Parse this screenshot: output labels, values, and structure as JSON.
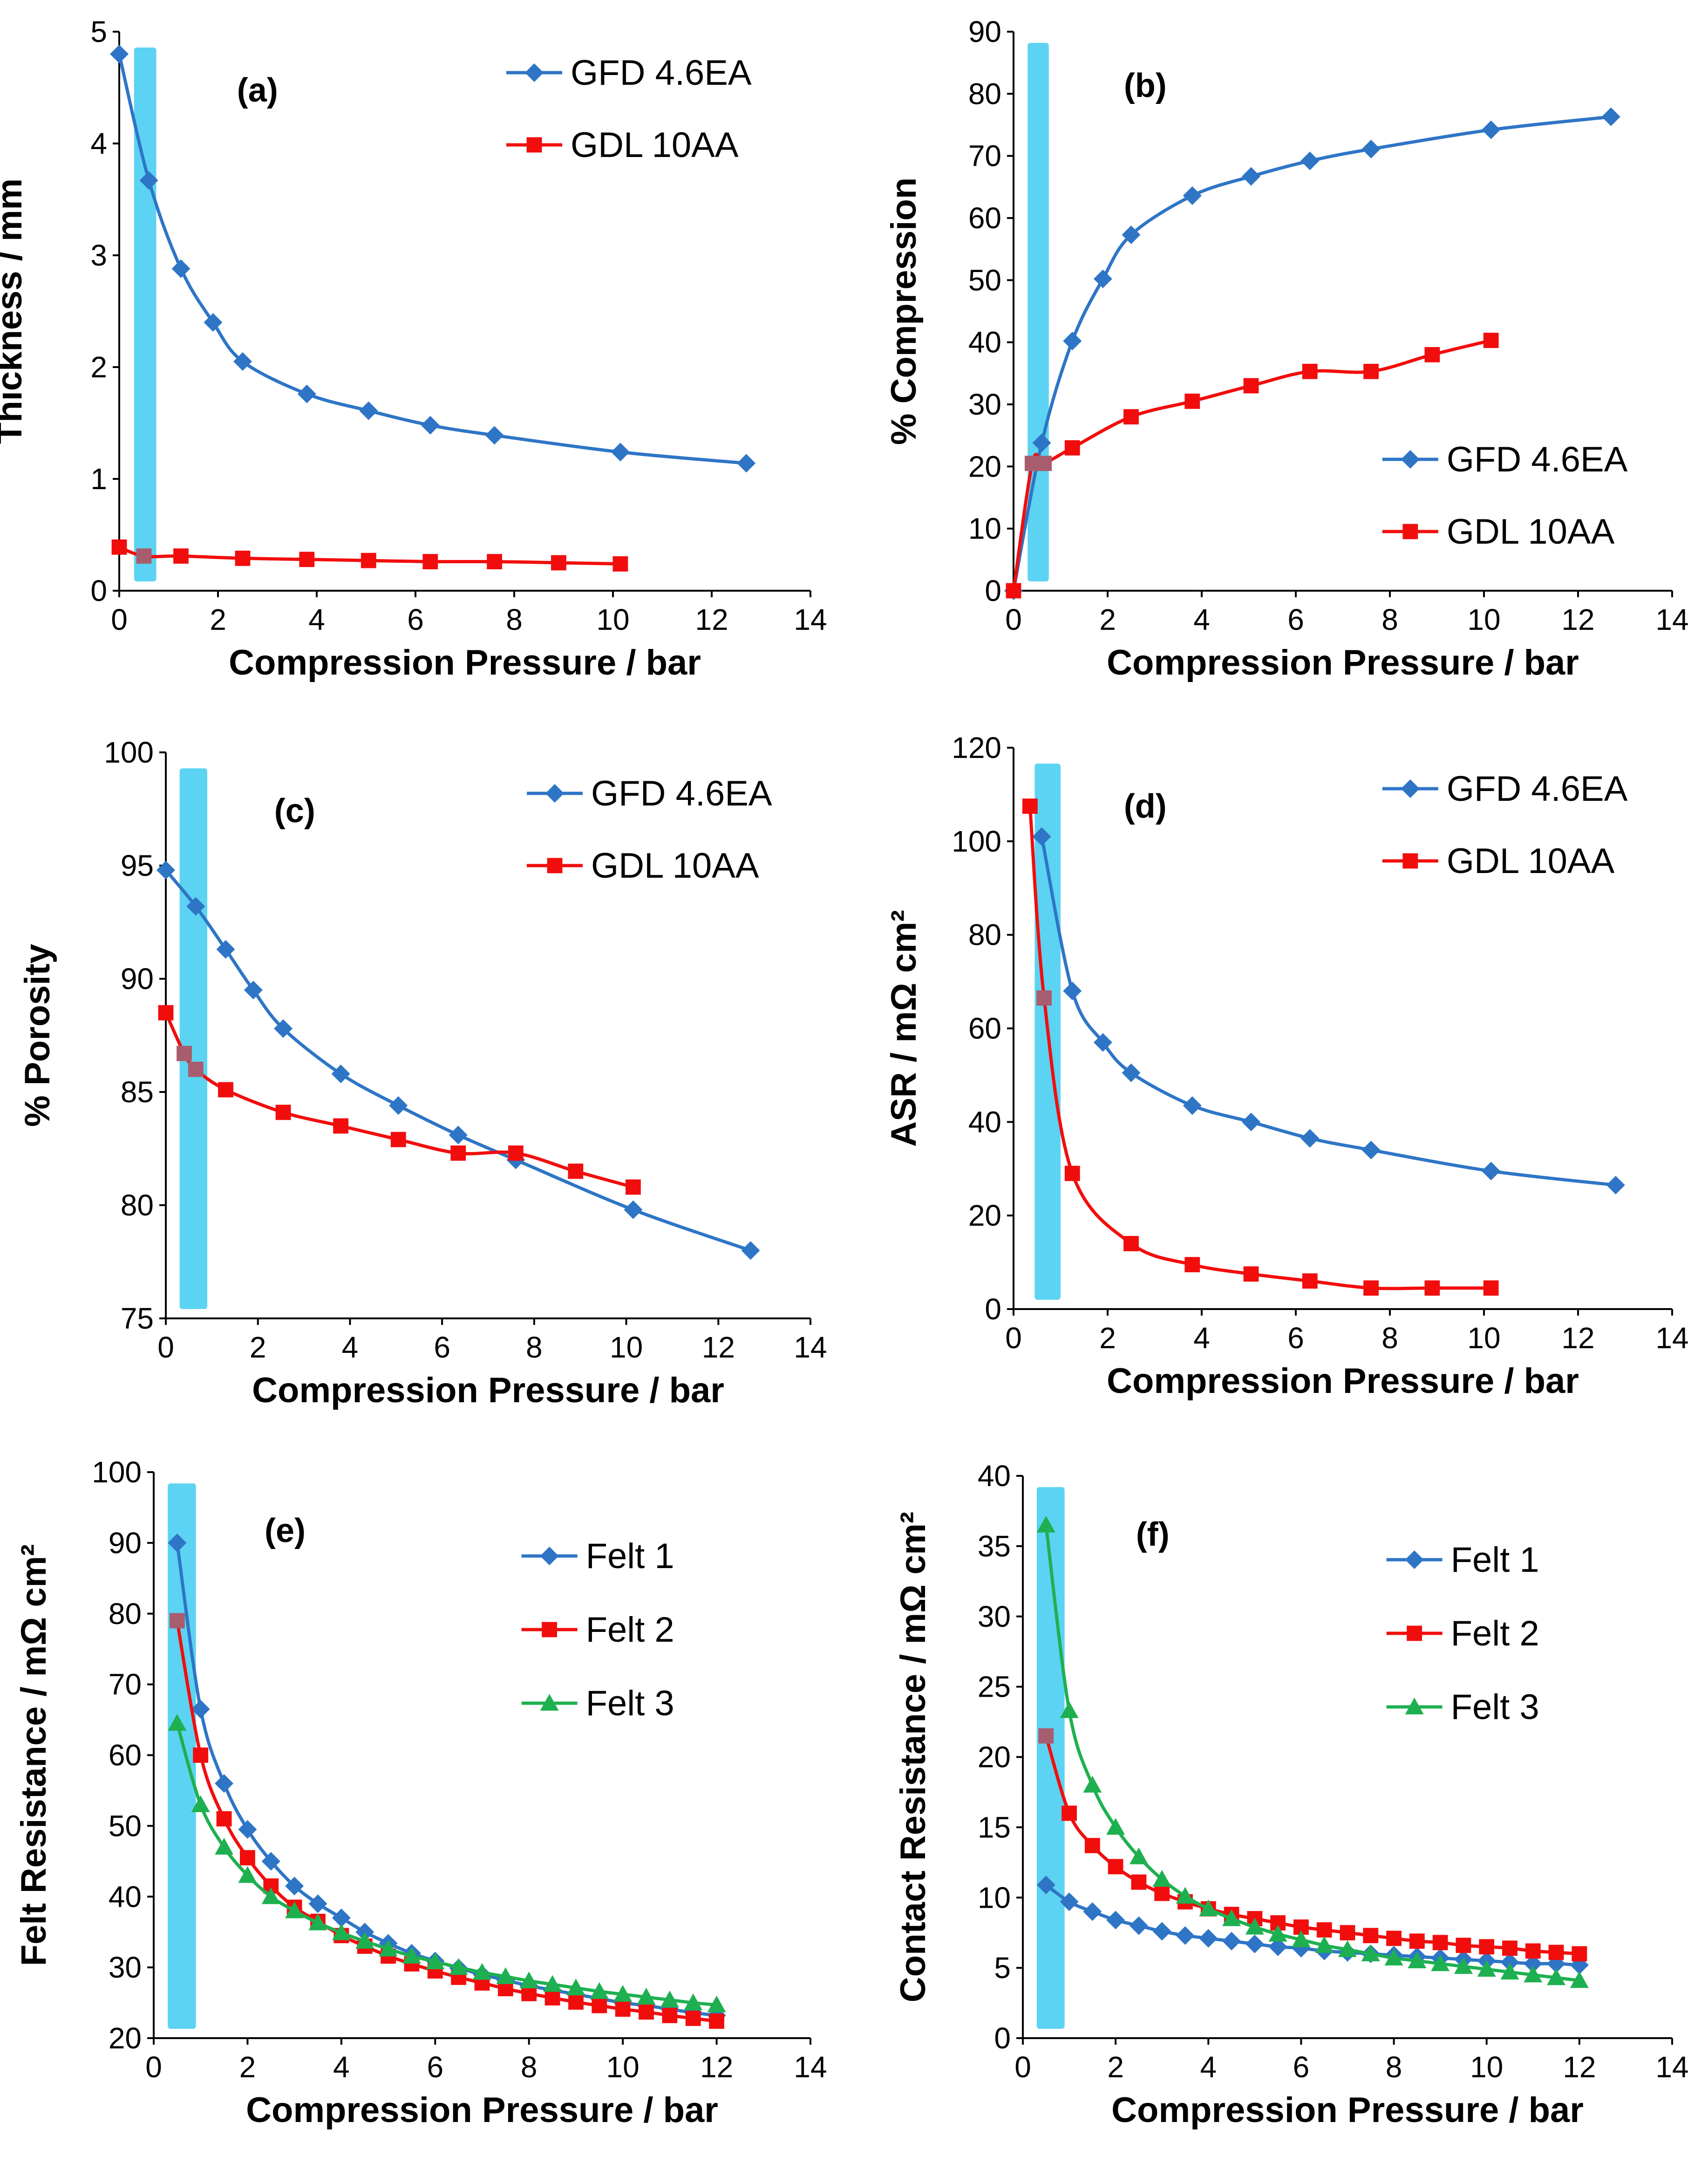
{
  "colors": {
    "blue": "#2E75C6",
    "red": "#F20D0D",
    "green": "#1EB050",
    "highlight": "#5CD3F2",
    "overlap": "#A85D6F",
    "axis": "#000000"
  },
  "chart_data": [
    {
      "panel": "a",
      "type": "line",
      "panel_label": "(a)",
      "xlabel": "Compression Pressure / bar",
      "ylabel": "Thickness / mm",
      "xlim": [
        0,
        14
      ],
      "ylim": [
        0,
        5
      ],
      "xticks": [
        0,
        2,
        4,
        6,
        8,
        10,
        12,
        14
      ],
      "yticks": [
        0,
        1,
        2,
        3,
        4,
        5
      ],
      "highlight_band": [
        0.3,
        0.75
      ],
      "legend_position": "top-right",
      "series": [
        {
          "name": "GFD 4.6EA",
          "color": "#2E75C6",
          "marker": "diamond",
          "x": [
            0,
            0.6,
            1.25,
            1.9,
            2.5,
            3.8,
            5.05,
            6.3,
            7.6,
            10.15,
            12.7
          ],
          "y": [
            4.8,
            3.67,
            2.88,
            2.4,
            2.05,
            1.76,
            1.61,
            1.48,
            1.39,
            1.24,
            1.14
          ]
        },
        {
          "name": "GDL 10AA",
          "color": "#F20D0D",
          "marker": "square",
          "x": [
            0,
            0.5,
            1.25,
            2.5,
            3.8,
            5.05,
            6.3,
            7.6,
            8.9,
            10.15
          ],
          "y": [
            0.39,
            0.31,
            0.31,
            0.29,
            0.28,
            0.27,
            0.26,
            0.26,
            0.25,
            0.24
          ]
        }
      ]
    },
    {
      "panel": "b",
      "type": "line",
      "panel_label": "(b)",
      "xlabel": "Compression Pressure / bar",
      "ylabel": "% Compression",
      "xlim": [
        0,
        14
      ],
      "ylim": [
        0,
        90
      ],
      "xticks": [
        0,
        2,
        4,
        6,
        8,
        10,
        12,
        14
      ],
      "yticks": [
        0,
        10,
        20,
        30,
        40,
        50,
        60,
        70,
        80,
        90
      ],
      "highlight_band": [
        0.3,
        0.75
      ],
      "legend_position": "bottom-right",
      "series": [
        {
          "name": "GFD 4.6EA",
          "color": "#2E75C6",
          "marker": "diamond",
          "x": [
            0,
            0.6,
            1.25,
            1.9,
            2.5,
            3.8,
            5.05,
            6.3,
            7.6,
            10.15,
            12.7
          ],
          "y": [
            0,
            23.8,
            40.2,
            50.2,
            57.3,
            63.6,
            66.7,
            69.2,
            71.1,
            74.2,
            76.3
          ]
        },
        {
          "name": "GDL 10AA",
          "color": "#F20D0D",
          "marker": "square",
          "x": [
            0,
            0.4,
            0.65,
            1.25,
            2.5,
            3.8,
            5.05,
            6.3,
            7.6,
            8.9,
            10.15
          ],
          "y": [
            0,
            20.5,
            20.5,
            23,
            28,
            30.5,
            33,
            35.3,
            35.3,
            38,
            40.3
          ]
        }
      ]
    },
    {
      "panel": "c",
      "type": "line",
      "panel_label": "(c)",
      "xlabel": "Compression Pressure / bar",
      "ylabel": "% Porosity",
      "xlim": [
        0,
        14
      ],
      "ylim": [
        75,
        100
      ],
      "xticks": [
        0,
        2,
        4,
        6,
        8,
        10,
        12,
        14
      ],
      "yticks": [
        75,
        80,
        85,
        90,
        95,
        100
      ],
      "highlight_band": [
        0.3,
        0.9
      ],
      "legend_position": "top-right",
      "series": [
        {
          "name": "GFD 4.6EA",
          "color": "#2E75C6",
          "marker": "diamond",
          "x": [
            0,
            0.65,
            1.3,
            1.9,
            2.55,
            3.8,
            5.05,
            6.35,
            7.6,
            10.15,
            12.7
          ],
          "y": [
            94.8,
            93.2,
            91.3,
            89.5,
            87.8,
            85.8,
            84.4,
            83.1,
            82,
            79.8,
            78
          ]
        },
        {
          "name": "GDL 10AA",
          "color": "#F20D0D",
          "marker": "square",
          "x": [
            0,
            0.4,
            0.65,
            1.3,
            2.55,
            3.8,
            5.05,
            6.35,
            7.6,
            8.9,
            10.15
          ],
          "y": [
            88.5,
            86.7,
            86,
            85.1,
            84.1,
            83.5,
            82.9,
            82.3,
            82.3,
            81.5,
            80.8
          ]
        }
      ]
    },
    {
      "panel": "d",
      "type": "line",
      "panel_label": "(d)",
      "xlabel": "Compression Pressure / bar",
      "ylabel": "ASR / mΩ cm²",
      "xlim": [
        0,
        14
      ],
      "ylim": [
        0,
        120
      ],
      "xticks": [
        0,
        2,
        4,
        6,
        8,
        10,
        12,
        14
      ],
      "yticks": [
        0,
        20,
        40,
        60,
        80,
        100,
        120
      ],
      "highlight_band": [
        0.45,
        1.0
      ],
      "legend_position": "top-right",
      "series": [
        {
          "name": "GFD 4.6EA",
          "color": "#2E75C6",
          "marker": "diamond",
          "x": [
            0.6,
            1.25,
            1.9,
            2.5,
            3.8,
            5.05,
            6.3,
            7.6,
            10.15,
            12.8
          ],
          "y": [
            101,
            68,
            57,
            50.5,
            43.5,
            40,
            36.5,
            34,
            29.5,
            26.5
          ]
        },
        {
          "name": "GDL 10AA",
          "color": "#F20D0D",
          "marker": "square",
          "x": [
            0.35,
            0.65,
            1.25,
            2.5,
            3.8,
            5.05,
            6.3,
            7.6,
            8.9,
            10.15
          ],
          "y": [
            107.5,
            66.5,
            29,
            14,
            9.5,
            7.5,
            6,
            4.5,
            4.5,
            4.5
          ]
        }
      ]
    },
    {
      "panel": "e",
      "type": "line",
      "panel_label": "(e)",
      "xlabel": "Compression Pressure / bar",
      "ylabel": "Felt Resistance / mΩ cm²",
      "xlim": [
        0,
        14
      ],
      "ylim": [
        20,
        100
      ],
      "xticks": [
        0,
        2,
        4,
        6,
        8,
        10,
        12,
        14
      ],
      "yticks": [
        20,
        30,
        40,
        50,
        60,
        70,
        80,
        90,
        100
      ],
      "highlight_band": [
        0.3,
        0.9
      ],
      "legend_position": "top-right",
      "series": [
        {
          "name": "Felt 1",
          "color": "#2E75C6",
          "marker": "diamond",
          "x": [
            0.5,
            1,
            1.5,
            2,
            2.5,
            3,
            3.5,
            4,
            4.5,
            5,
            5.5,
            6,
            6.5,
            7,
            7.5,
            8,
            8.5,
            9,
            9.5,
            10,
            10.5,
            11,
            11.5,
            12
          ],
          "y": [
            90,
            66.5,
            56,
            49.5,
            45,
            41.5,
            39,
            37,
            35,
            33.4,
            32,
            30.9,
            29.9,
            29,
            28.2,
            27.4,
            26.8,
            26.2,
            25.6,
            25,
            24.6,
            24.1,
            23.6,
            23.2
          ]
        },
        {
          "name": "Felt 2",
          "color": "#F20D0D",
          "marker": "square",
          "x": [
            0.5,
            1,
            1.5,
            2,
            2.5,
            3,
            3.5,
            4,
            4.5,
            5,
            5.5,
            6,
            6.5,
            7,
            7.5,
            8,
            8.5,
            9,
            9.5,
            10,
            10.5,
            11,
            11.5,
            12
          ],
          "y": [
            79,
            60,
            51,
            45.5,
            41.5,
            38.5,
            36.5,
            34.5,
            33,
            31.6,
            30.5,
            29.5,
            28.6,
            27.8,
            27,
            26.3,
            25.7,
            25.1,
            24.6,
            24.1,
            23.7,
            23.2,
            22.8,
            22.4
          ]
        },
        {
          "name": "Felt 3",
          "color": "#1EB050",
          "marker": "triangle",
          "x": [
            0.5,
            1,
            1.5,
            2,
            2.5,
            3,
            3.5,
            4,
            4.5,
            5,
            5.5,
            6,
            6.5,
            7,
            7.5,
            8,
            8.5,
            9,
            9.5,
            10,
            10.5,
            11,
            11.5,
            12
          ],
          "y": [
            64.5,
            53,
            47,
            43,
            40,
            38,
            36.3,
            34.9,
            33.7,
            32.6,
            31.6,
            30.8,
            30,
            29.3,
            28.7,
            28.1,
            27.6,
            27.1,
            26.6,
            26.2,
            25.8,
            25.4,
            25,
            24.7
          ]
        }
      ]
    },
    {
      "panel": "f",
      "type": "line",
      "panel_label": "(f)",
      "xlabel": "Compression Pressure / bar",
      "ylabel": "Contact Resistance / mΩ cm²",
      "xlim": [
        0,
        14
      ],
      "ylim": [
        0,
        40
      ],
      "xticks": [
        0,
        2,
        4,
        6,
        8,
        10,
        12,
        14
      ],
      "yticks": [
        0,
        5,
        10,
        15,
        20,
        25,
        30,
        35,
        40
      ],
      "highlight_band": [
        0.3,
        0.9
      ],
      "legend_position": "top-right",
      "series": [
        {
          "name": "Felt 1",
          "color": "#2E75C6",
          "marker": "diamond",
          "x": [
            0.5,
            1,
            1.5,
            2,
            2.5,
            3,
            3.5,
            4,
            4.5,
            5,
            5.5,
            6,
            6.5,
            7,
            7.5,
            8,
            8.5,
            9,
            9.5,
            10,
            10.5,
            11,
            11.5,
            12
          ],
          "y": [
            10.9,
            9.7,
            9,
            8.4,
            8,
            7.6,
            7.3,
            7.1,
            6.9,
            6.7,
            6.5,
            6.4,
            6.2,
            6.1,
            6,
            5.9,
            5.8,
            5.7,
            5.6,
            5.5,
            5.4,
            5.3,
            5.3,
            5.2
          ]
        },
        {
          "name": "Felt 2",
          "color": "#F20D0D",
          "marker": "square",
          "x": [
            0.5,
            1,
            1.5,
            2,
            2.5,
            3,
            3.5,
            4,
            4.5,
            5,
            5.5,
            6,
            6.5,
            7,
            7.5,
            8,
            8.5,
            9,
            9.5,
            10,
            10.5,
            11,
            11.5,
            12
          ],
          "y": [
            21.5,
            16,
            13.7,
            12.2,
            11.1,
            10.3,
            9.7,
            9.2,
            8.8,
            8.5,
            8.2,
            7.9,
            7.7,
            7.5,
            7.3,
            7.1,
            6.9,
            6.8,
            6.6,
            6.5,
            6.4,
            6.2,
            6.1,
            6
          ]
        },
        {
          "name": "Felt 3",
          "color": "#1EB050",
          "marker": "triangle",
          "x": [
            0.5,
            1,
            1.5,
            2,
            2.5,
            3,
            3.5,
            4,
            4.5,
            5,
            5.5,
            6,
            6.5,
            7,
            7.5,
            8,
            8.5,
            9,
            9.5,
            10,
            10.5,
            11,
            11.5,
            12
          ],
          "y": [
            36.5,
            23.3,
            18,
            15,
            12.9,
            11.3,
            10.1,
            9.2,
            8.5,
            7.9,
            7.4,
            7,
            6.6,
            6.3,
            6,
            5.7,
            5.5,
            5.3,
            5.1,
            4.9,
            4.7,
            4.5,
            4.3,
            4.1
          ]
        }
      ]
    }
  ]
}
